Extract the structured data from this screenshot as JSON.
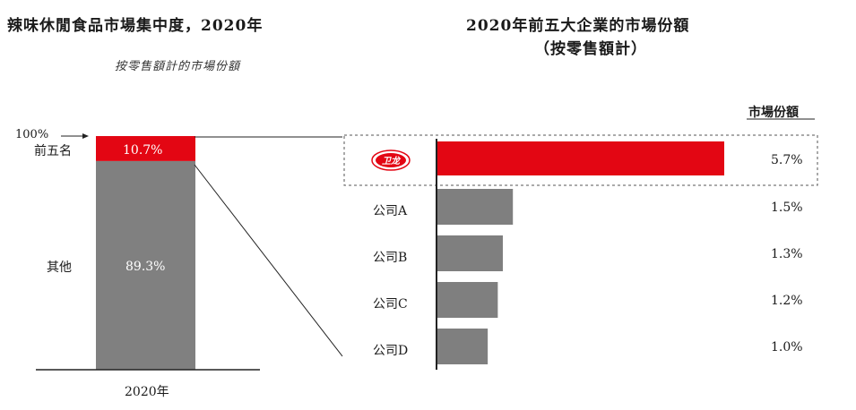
{
  "left_chart": {
    "title": "辣味休閒食品市場集中度，2020年",
    "subtitle": "按零售額計的市場份額",
    "top_marker": "100%",
    "xlabel": "2020年"
  },
  "right_chart": {
    "title_line1": "2020年前五大企業的市場份額",
    "title_line2": "（按零售額計）",
    "column_header": "市場份額",
    "highlight_logo_text": "卫龙"
  },
  "colors": {
    "highlight": "#e30613",
    "bar_gray": "#7f7f7f",
    "stack_gray": "#808080"
  },
  "chart_data": [
    {
      "type": "bar",
      "subtype": "stacked",
      "title": "辣味休閒食品市場集中度，2020年",
      "subtitle": "按零售額計的市場份額",
      "categories": [
        "2020年"
      ],
      "unit": "%",
      "series": [
        {
          "name": "前五名",
          "values": [
            10.7
          ],
          "label": "10.7%"
        },
        {
          "name": "其他",
          "values": [
            89.3
          ],
          "label": "89.3%"
        }
      ],
      "ylim": [
        0,
        100
      ]
    },
    {
      "type": "bar",
      "orientation": "horizontal",
      "title": "2020年前五大企業的市場份額（按零售額計）",
      "column_header": "市場份額",
      "unit": "%",
      "categories": [
        "卫龙",
        "公司A",
        "公司B",
        "公司C",
        "公司D"
      ],
      "values": [
        5.7,
        1.5,
        1.3,
        1.2,
        1.0
      ],
      "labels": [
        "5.7%",
        "1.5%",
        "1.3%",
        "1.2%",
        "1.0%"
      ],
      "highlight_index": 0
    }
  ]
}
